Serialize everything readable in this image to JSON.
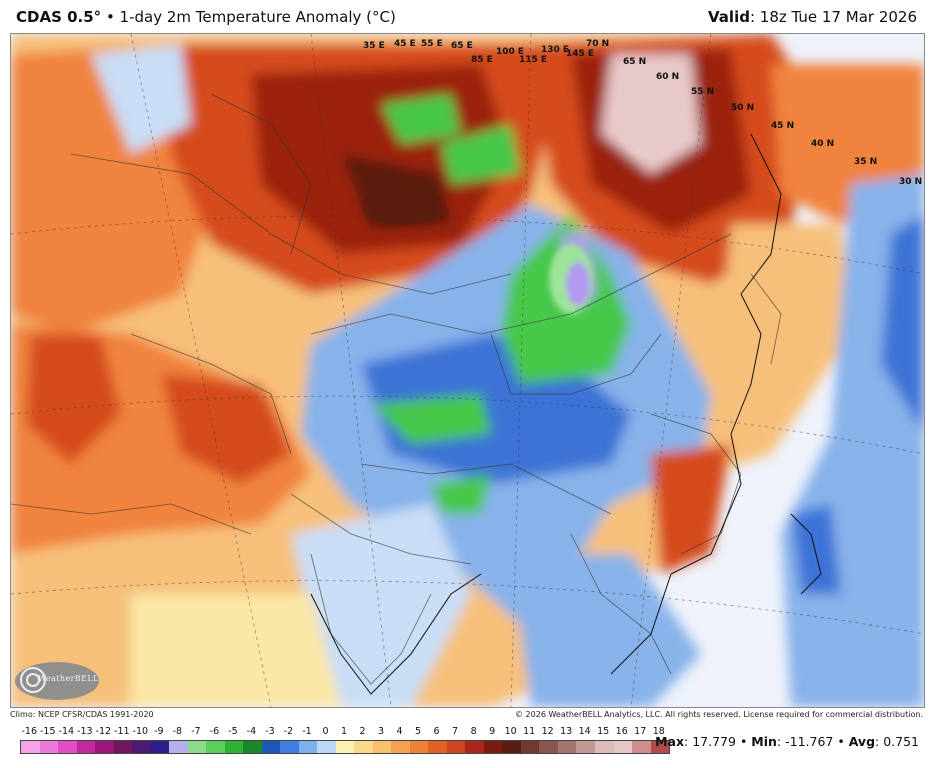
{
  "header": {
    "model": "CDAS 0.5°",
    "product": " • 1-day 2m Temperature Anomaly (°C)",
    "valid_label": "Valid",
    "valid_value": ": 18z Tue 17 Mar 2026"
  },
  "map": {
    "lat_labels": [
      "70 N",
      "65 N",
      "60 N",
      "55 N",
      "50 N",
      "45 N",
      "40 N",
      "35 N",
      "30 N"
    ],
    "lon_labels": [
      "35 E",
      "45 E",
      "55 E",
      "65 E",
      "85 E",
      "100 E",
      "115 E",
      "130 E",
      "145 E"
    ],
    "colors": {
      "ocean": "#eef2fb",
      "land_neutral": "#fbe7a6",
      "warm_light": "#f7c07a",
      "warm": "#f0833d",
      "warm_strong": "#d64b1f",
      "hot": "#9b2210",
      "very_hot": "#5a1c10",
      "extreme": "#e8c9c9",
      "cool_light": "#c9ddf6",
      "cool": "#87b2ea",
      "cold": "#3d73d6",
      "colder": "#2f4cc4",
      "green": "#46c84a",
      "green_light": "#9ee39a",
      "violet": "#b19af0",
      "borders": "#333333"
    }
  },
  "logo": {
    "text": "WeatherBELL",
    "icon": "swirl-logo-icon"
  },
  "footer": {
    "climo": "Climo: NCEP CFSR/CDAS 1991-2020",
    "copyright": "© 2026 WeatherBELL Analytics, LLC. All rights reserved. License required for commercial distribution."
  },
  "legend": {
    "labels": [
      "-16",
      "-15",
      "-14",
      "-13",
      "-12",
      "-11",
      "-10",
      "-9",
      "-8",
      "-7",
      "-6",
      "-5",
      "-4",
      "-3",
      "-2",
      "-1",
      "0",
      "1",
      "2",
      "3",
      "4",
      "5",
      "6",
      "7",
      "8",
      "9",
      "10",
      "11",
      "12",
      "13",
      "14",
      "15",
      "16",
      "17",
      "18"
    ],
    "colors": [
      "#f4a3e6",
      "#ee7ad7",
      "#e04ec4",
      "#c3299f",
      "#9c167e",
      "#6e1860",
      "#4c1a72",
      "#2d1f8c",
      "#b7b0ef",
      "#8fd98a",
      "#5ccf5b",
      "#2fb234",
      "#19862a",
      "#1f57b8",
      "#3f7ee0",
      "#7fb0ee",
      "#bdd7f6",
      "#fdf2b6",
      "#fbd98a",
      "#f8bf6e",
      "#f4a251",
      "#ee8137",
      "#e06326",
      "#cd4420",
      "#a8271a",
      "#7a1c10",
      "#5a1d14",
      "#6e3a32",
      "#895650",
      "#a37670",
      "#c29894",
      "#dcbbb8",
      "#e4c8c8",
      "#cf8f8f",
      "#b04c4c"
    ]
  },
  "stats": {
    "max_label": "Max",
    "max_value": ": 17.779",
    "min_label": "Min",
    "min_value": ": -11.767",
    "avg_label": "Avg",
    "avg_value": ": 0.751",
    "separator": " • "
  }
}
